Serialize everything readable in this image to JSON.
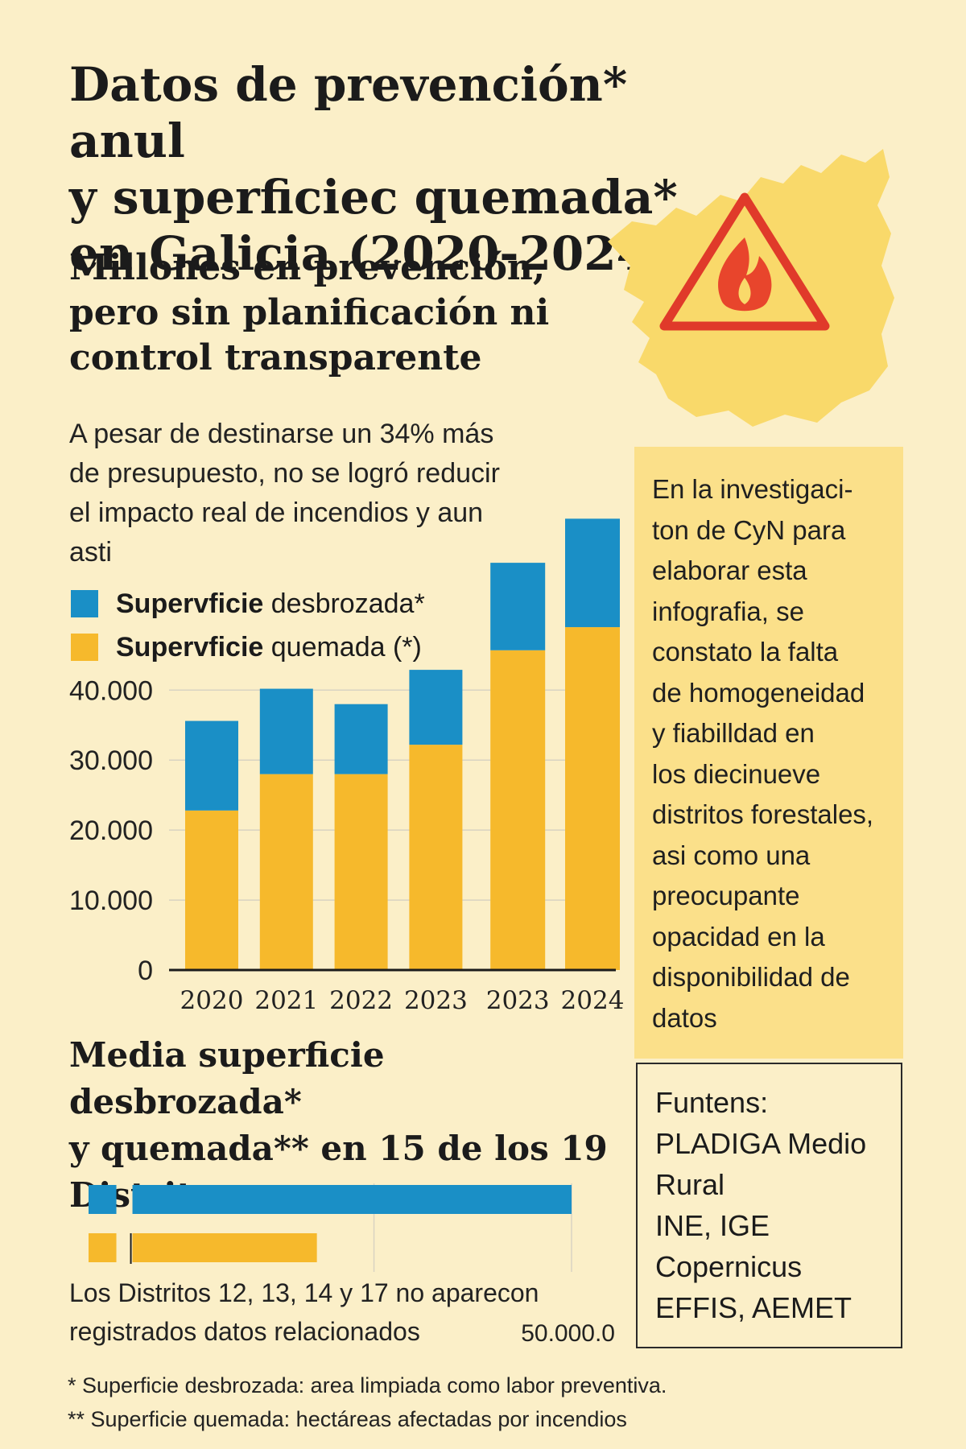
{
  "title": {
    "line1": "Datos de prevención* anul",
    "line2": "y superficiec quemada*",
    "line3": "en Galicia (2020-2024)"
  },
  "subtitle": {
    "line1": "Millones en prevención,",
    "line2": "pero sin planificación ni",
    "line3": "control transparente"
  },
  "intro": [
    "A pesar de destinarse un 34% más",
    "de presupuesto, no se logró reducir",
    "el impacto real de incendios y aun",
    "asti"
  ],
  "map": {
    "icon": "fire-warning-icon",
    "fill": "#f9d96a",
    "triangle_color": "#e03a2a"
  },
  "legend": [
    {
      "bold": "Supervficie",
      "rest": " desbrozada*",
      "color": "#1a8fc6"
    },
    {
      "bold": "Supervficie",
      "rest": " quemada (*)",
      "color": "#f6b92c"
    }
  ],
  "colors": {
    "background": "#fbefc8",
    "blue": "#1a8fc6",
    "yellow": "#f6b92c",
    "callout": "#fbe08a"
  },
  "chart_data": [
    {
      "type": "bar",
      "stacked": true,
      "categories": [
        "2020",
        "2021",
        "2022",
        "2023",
        "2023",
        "2024"
      ],
      "series": [
        {
          "name": "Supervficie quemada (*)",
          "color": "#f6b92c",
          "values": [
            22800,
            28000,
            28000,
            32200,
            45700,
            49000
          ]
        },
        {
          "name": "Supervficie desbrozada*",
          "color": "#1a8fc6",
          "values": [
            12800,
            12200,
            10000,
            10700,
            12500,
            15500
          ]
        }
      ],
      "yticks": [
        "0",
        "10.000",
        "20.000",
        "30.000",
        "40.000"
      ],
      "ylim": [
        0,
        65000
      ],
      "grid": true,
      "legend_position": "top-left"
    },
    {
      "type": "bar",
      "orientation": "horizontal",
      "title": "Media superficie desbrozada* y quemada** en 15 de los 19 Distritos",
      "series": [
        {
          "color": "#1a8fc6",
          "values": [
            50000
          ]
        },
        {
          "color": "#f6b92c",
          "values": [
            21000
          ]
        }
      ],
      "xticks": [
        "50.000.0"
      ],
      "xlim": [
        -5000,
        50000
      ],
      "grid": true
    }
  ],
  "chart2": {
    "title": [
      "Media superficie desbrozada*",
      "y quemada** en 15 de los 19",
      "Distritos"
    ],
    "note": [
      "Los Distritos 12, 13, 14 y 17 no aparecon",
      "registrados datos relacionados"
    ],
    "tick": "50.000.0"
  },
  "callout": [
    "En la investigaci-",
    "ton de CyN para",
    "elaborar esta",
    "infografia, se",
    "constato la falta",
    "de homogeneidad",
    "y fiabilldad en",
    "los diecinueve",
    "distritos forestales,",
    "asi como una",
    "preocupante",
    "opacidad en la",
    "disponibilidad de",
    "datos"
  ],
  "sources": [
    "Funtens:",
    "PLADIGA Medio",
    "Rural",
    "INE, IGE",
    "Copernicus",
    "EFFIS, AEMET"
  ],
  "footnotes": [
    "* Superficie desbrozada: area limpiada como labor preventiva.",
    "** Superficie quemada: hectáreas afectadas por incendios"
  ]
}
